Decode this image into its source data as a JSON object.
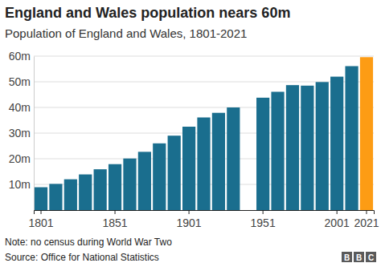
{
  "chart_data": {
    "type": "bar",
    "title": "England and Wales population nears 60m",
    "subtitle": "Population of England and Wales, 1801-2021",
    "note": "Note: no census during World War Two",
    "source": "Source: Office for National Statistics",
    "logo": "BBC",
    "categories": [
      "1801",
      null,
      null,
      null,
      null,
      "1851",
      null,
      null,
      null,
      null,
      "1901",
      null,
      null,
      null,
      null,
      "1951",
      null,
      null,
      null,
      null,
      "2001",
      null,
      "2021"
    ],
    "values": [
      8.9,
      10.2,
      12.0,
      13.9,
      15.9,
      17.9,
      20.1,
      22.7,
      26.0,
      29.0,
      32.5,
      36.1,
      37.9,
      40.0,
      null,
      43.8,
      46.1,
      48.7,
      48.5,
      49.9,
      52.0,
      56.1,
      59.6
    ],
    "colors": [
      "#1a6e8e",
      "#1a6e8e",
      "#1a6e8e",
      "#1a6e8e",
      "#1a6e8e",
      "#1a6e8e",
      "#1a6e8e",
      "#1a6e8e",
      "#1a6e8e",
      "#1a6e8e",
      "#1a6e8e",
      "#1a6e8e",
      "#1a6e8e",
      "#1a6e8e",
      "#1a6e8e",
      "#1a6e8e",
      "#1a6e8e",
      "#1a6e8e",
      "#1a6e8e",
      "#1a6e8e",
      "#1a6e8e",
      "#1a6e8e",
      "#fd9c14"
    ],
    "ylim": [
      0,
      60
    ],
    "yticks": [
      {
        "value": 10,
        "label": "10m"
      },
      {
        "value": 20,
        "label": "20m"
      },
      {
        "value": 30,
        "label": "30m"
      },
      {
        "value": 40,
        "label": "40m"
      },
      {
        "value": 50,
        "label": "50m"
      },
      {
        "value": 60,
        "label": "60m"
      }
    ],
    "grid": true
  }
}
